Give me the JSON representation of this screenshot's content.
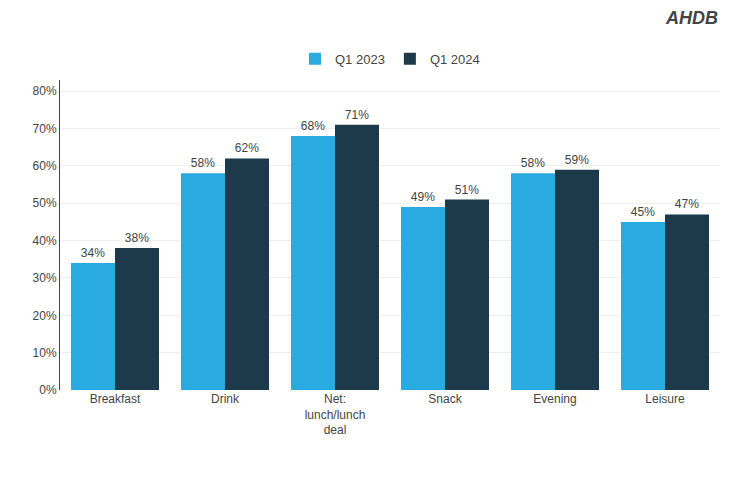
{
  "chart_data": {
    "type": "bar",
    "categories": [
      "Breakfast",
      "Drink",
      "Net:\nlunch/lunch\ndeal",
      "Snack",
      "Evening",
      "Leisure"
    ],
    "series": [
      {
        "name": "Q1 2023",
        "color": "#29ABE2",
        "values": [
          34,
          58,
          68,
          49,
          58,
          45
        ],
        "value_labels": [
          "34%",
          "58%",
          "68%",
          "49%",
          "58%",
          "45%"
        ]
      },
      {
        "name": "Q1 2024",
        "color": "#1C3A4A",
        "values": [
          38,
          62,
          71,
          51,
          59,
          47
        ],
        "value_labels": [
          "38%",
          "62%",
          "71%",
          "51%",
          "59%",
          "47%"
        ]
      }
    ],
    "ylim": [
      0,
      83
    ],
    "yticks": [
      {
        "value": 0,
        "label": "0%"
      },
      {
        "value": 10,
        "label": "10%"
      },
      {
        "value": 20,
        "label": "20%"
      },
      {
        "value": 30,
        "label": "30%"
      },
      {
        "value": 40,
        "label": "40%"
      },
      {
        "value": 50,
        "label": "50%"
      },
      {
        "value": 60,
        "label": "60%"
      },
      {
        "value": 70,
        "label": "70%"
      },
      {
        "value": 80,
        "label": "80%"
      }
    ],
    "grid": true,
    "legend": "top",
    "data_labels": true,
    "annotations": [
      "AHDB"
    ]
  }
}
